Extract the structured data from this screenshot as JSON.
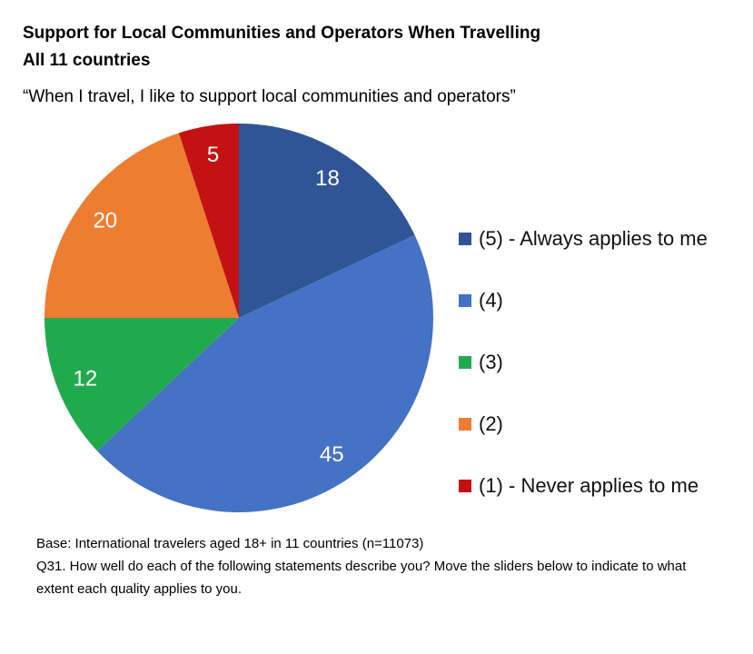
{
  "header": {
    "title_line1": "Support for Local Communities and Operators When Travelling",
    "title_line2": "All 11 countries"
  },
  "quote": "“When I travel, I like to support local communities and operators”",
  "chart_data": {
    "type": "pie",
    "title": "Support for Local Communities and Operators When Travelling",
    "subtitle": "All 11 countries",
    "units": "percent",
    "start_angle_deg": 0,
    "direction": "clockwise",
    "legend_position": "right",
    "data_labels": "values shown inside slices",
    "slices": [
      {
        "label": "(5) - Always applies to me",
        "value": 18,
        "color": "#2F5597"
      },
      {
        "label": "(4)",
        "value": 45,
        "color": "#4472C4"
      },
      {
        "label": "(3)",
        "value": 12,
        "color": "#21A94E"
      },
      {
        "label": "(2)",
        "value": 20,
        "color": "#ED7D31"
      },
      {
        "label": "(1) - Never applies to me",
        "value": 5,
        "color": "#C41112"
      }
    ]
  },
  "footer": {
    "base_line": "Base: International travelers aged 18+ in 11 countries (n=11073)",
    "question_line": "Q31. How well do each of the following statements describe you? Move the sliders below to indicate to what extent each quality applies to you."
  }
}
